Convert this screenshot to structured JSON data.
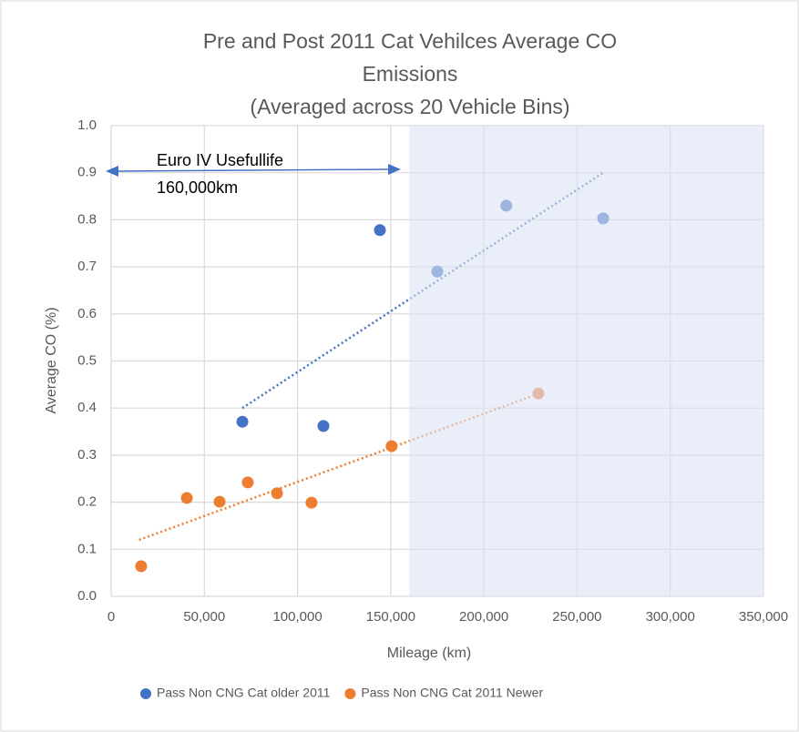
{
  "chart_data": {
    "type": "scatter",
    "title_lines": [
      "Pre and Post 2011 Cat Vehilces Average CO",
      "Emissions",
      "(Averaged across 20 Vehicle Bins)"
    ],
    "x_label": "Mileage (km)",
    "y_label": "Average CO (%)",
    "annotations": [
      "Euro IV Usefullife",
      "160,000km"
    ],
    "highlight_xrange": [
      160000,
      350000
    ],
    "highlight_color": "#dae3f3",
    "xlim": [
      0,
      350000
    ],
    "xticks": [
      0,
      {
        "value": 50000,
        "label": "50,000"
      },
      {
        "value": 100000,
        "label": "100,000"
      },
      {
        "value": 150000,
        "label": "150,000"
      },
      {
        "value": 200000,
        "label": "200,000"
      },
      {
        "value": 250000,
        "label": "250,000"
      },
      {
        "value": 300000,
        "label": "300,000"
      },
      {
        "value": 350000,
        "label": "350,000"
      }
    ],
    "ylim": [
      0,
      1
    ],
    "yticks": [
      {
        "value": 0,
        "label": "0.0"
      },
      0.1,
      0.2,
      0.3,
      0.4,
      0.5,
      0.6,
      0.7,
      0.8,
      0.9,
      {
        "value": 1,
        "label": "1.0"
      }
    ],
    "grid": true,
    "legend": "bottom",
    "series": [
      {
        "name": "Pass Non CNG Cat older 2011",
        "color": "#4472c4",
        "x": [
          70400,
          113900,
          144200,
          175000,
          212000,
          264000
        ],
        "values": [
          0.371,
          0.362,
          0.778,
          0.69,
          0.83,
          0.803
        ],
        "trendline": {
          "x": [
            70400,
            264000
          ],
          "y": [
            0.4,
            0.9
          ]
        }
      },
      {
        "name": "Pass Non CNG Cat 2011 Newer",
        "color": "#ed7d31",
        "x": [
          16100,
          40600,
          58200,
          73300,
          89000,
          107500,
          150500,
          229200
        ],
        "values": [
          0.064,
          0.209,
          0.201,
          0.242,
          0.219,
          0.199,
          0.319,
          0.431
        ],
        "trendline": {
          "x": [
            15000,
            229000
          ],
          "y": [
            0.12,
            0.43
          ]
        }
      }
    ]
  }
}
